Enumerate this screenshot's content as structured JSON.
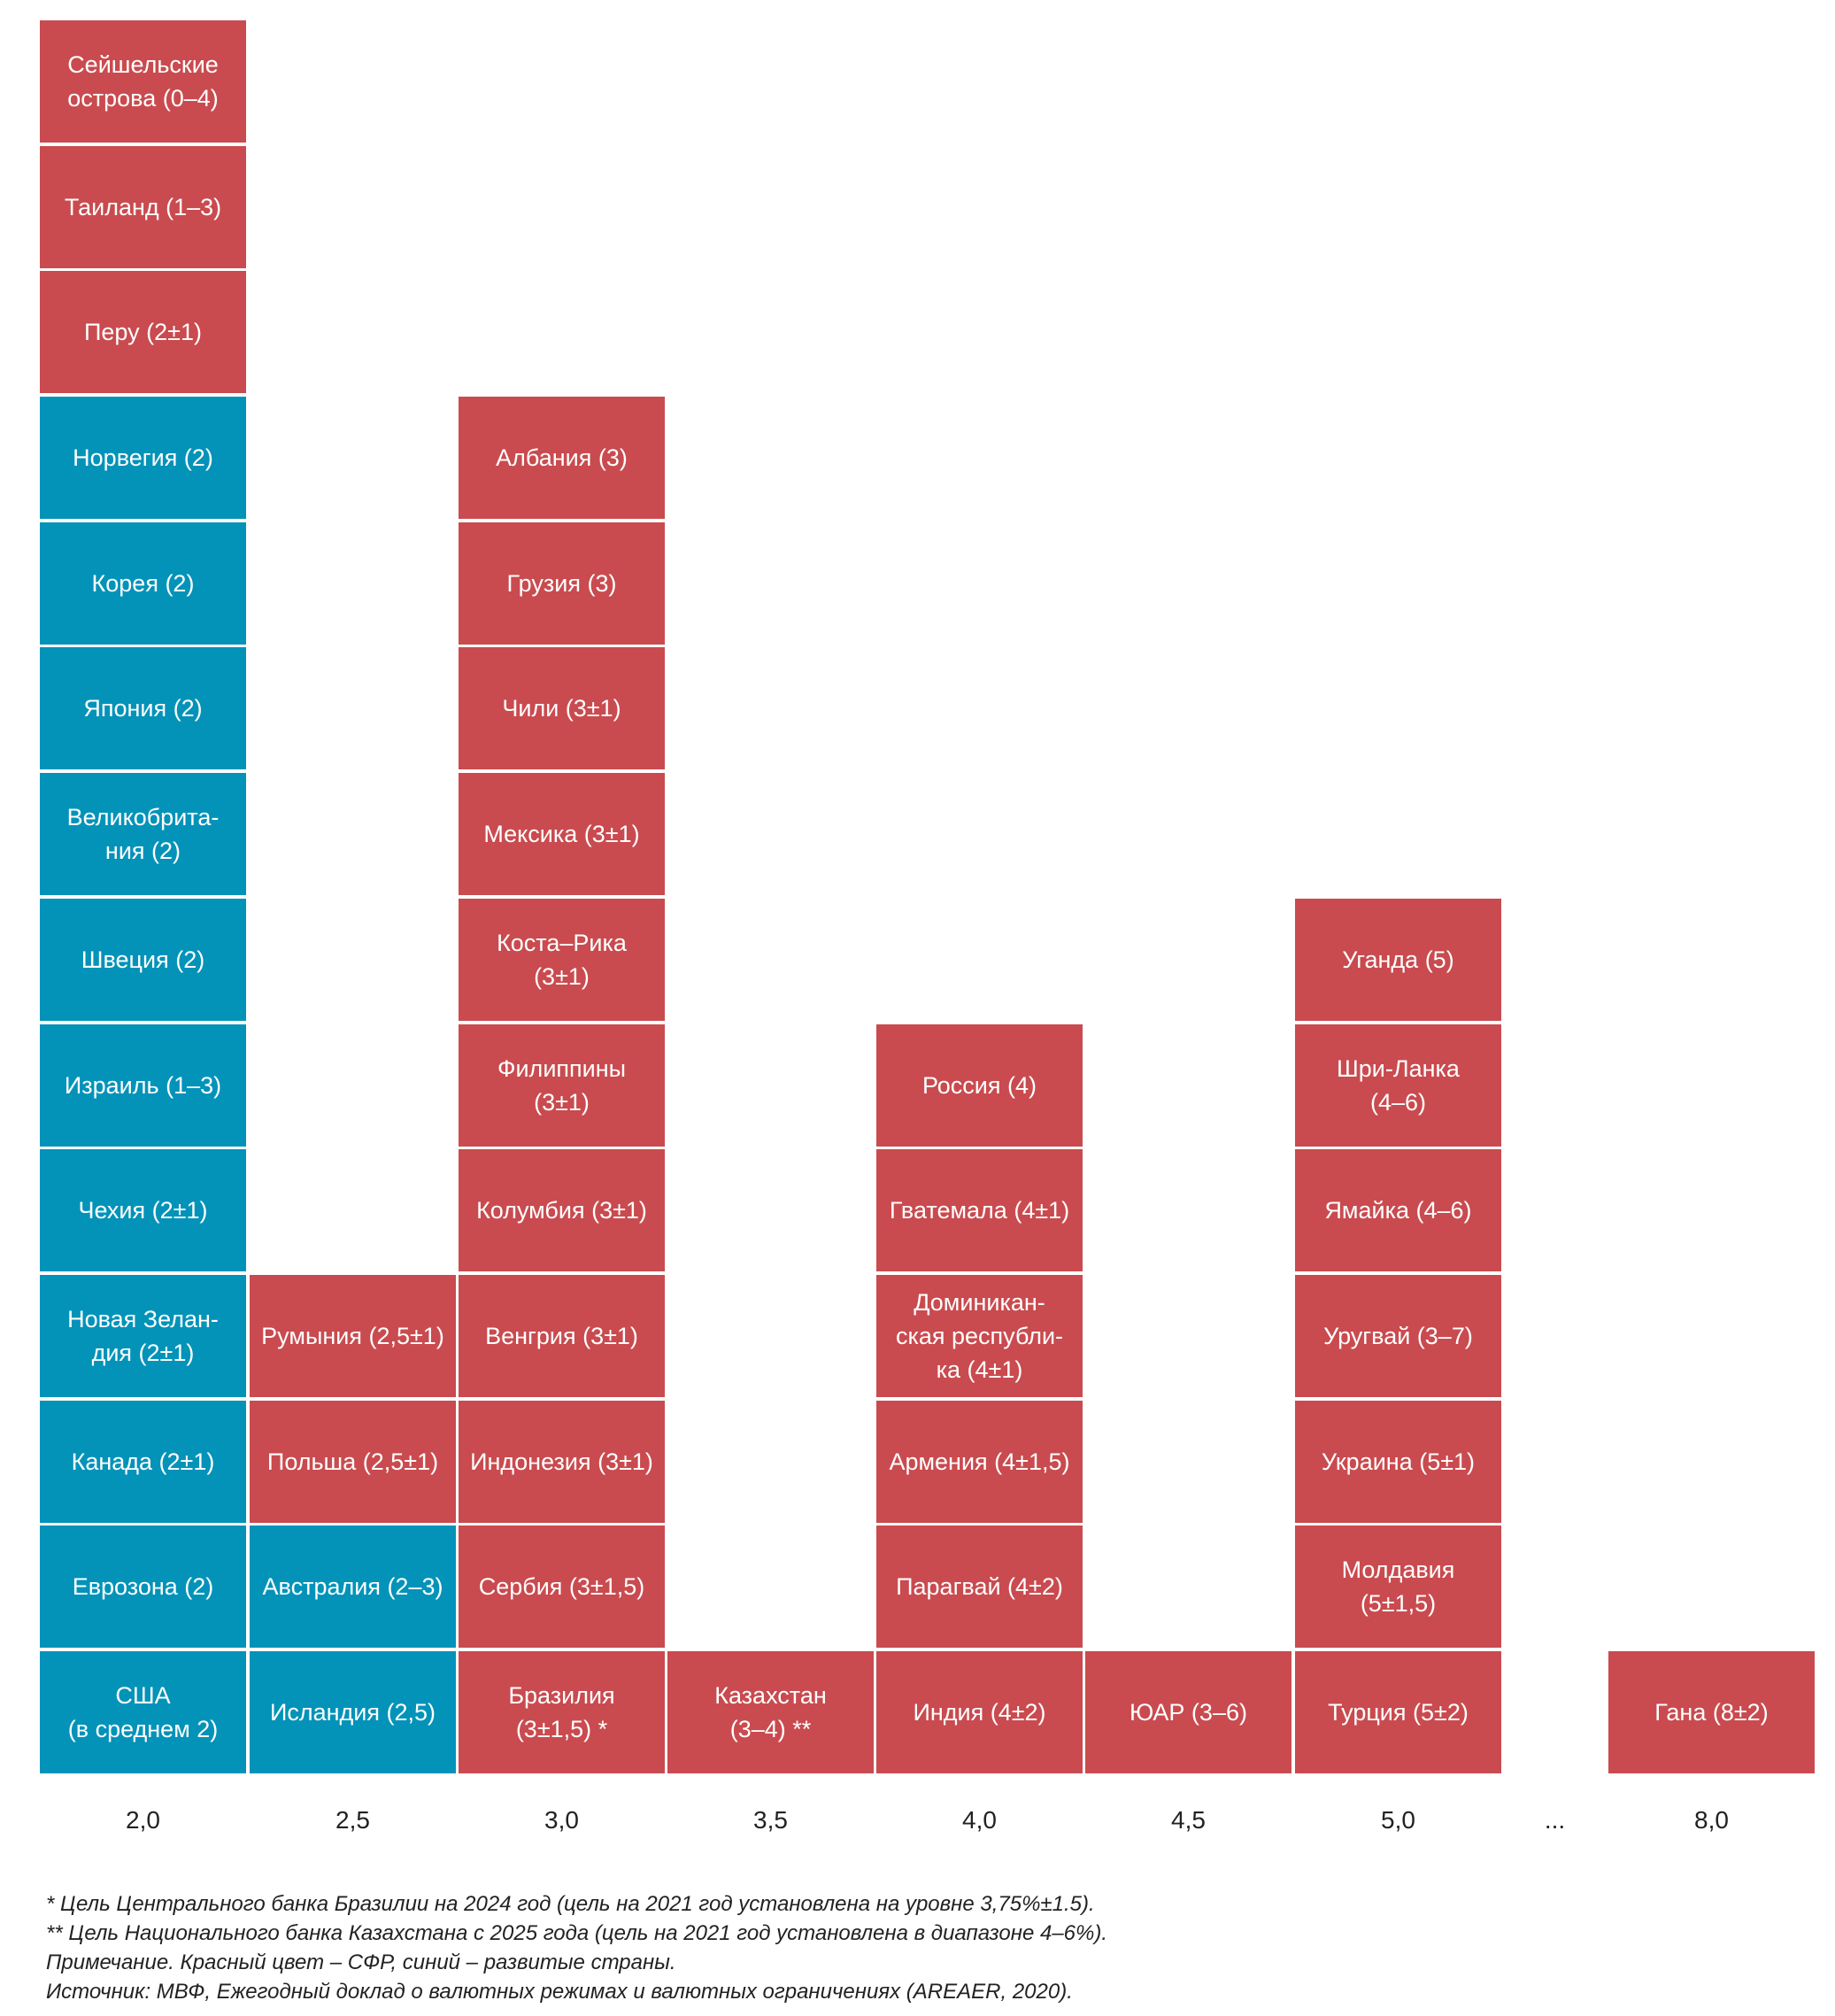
{
  "chart_data": {
    "type": "table",
    "title": "",
    "xlabel": "",
    "ylabel": "",
    "description": "Inflation targets by country, stacked by target level (%)",
    "colors": {
      "emerging": "#C94B4F",
      "advanced": "#0393B9"
    },
    "legend": {
      "emerging": "СФР",
      "advanced": "развитые страны"
    },
    "categories": [
      "2,0",
      "2,5",
      "3,0",
      "3,5",
      "4,0",
      "4,5",
      "5,0",
      "...",
      "8,0"
    ],
    "columns": [
      {
        "target": "2,0",
        "items": [
          {
            "label": "США\n(в среднем 2)",
            "group": "advanced"
          },
          {
            "label": "Еврозона (2)",
            "group": "advanced"
          },
          {
            "label": "Канада (2±1)",
            "group": "advanced"
          },
          {
            "label": "Новая Зелан-\nдия (2±1)",
            "group": "advanced"
          },
          {
            "label": "Чехия (2±1)",
            "group": "advanced"
          },
          {
            "label": "Израиль (1–3)",
            "group": "advanced"
          },
          {
            "label": "Швеция (2)",
            "group": "advanced"
          },
          {
            "label": "Великобрита-\nния (2)",
            "group": "advanced"
          },
          {
            "label": "Япония (2)",
            "group": "advanced"
          },
          {
            "label": "Корея (2)",
            "group": "advanced"
          },
          {
            "label": "Норвегия (2)",
            "group": "advanced"
          },
          {
            "label": "Перу (2±1)",
            "group": "emerging"
          },
          {
            "label": "Таиланд (1–3)",
            "group": "emerging"
          },
          {
            "label": "Сейшельские\nострова (0–4)",
            "group": "emerging"
          }
        ]
      },
      {
        "target": "2,5",
        "items": [
          {
            "label": "Исландия (2,5)",
            "group": "advanced"
          },
          {
            "label": "Австралия (2–3)",
            "group": "advanced"
          },
          {
            "label": "Польша (2,5±1)",
            "group": "emerging"
          },
          {
            "label": "Румыния (2,5±1)",
            "group": "emerging"
          }
        ]
      },
      {
        "target": "3,0",
        "items": [
          {
            "label": "Бразилия\n(3±1,5) *",
            "group": "emerging"
          },
          {
            "label": "Сербия (3±1,5)",
            "group": "emerging"
          },
          {
            "label": "Индонезия (3±1)",
            "group": "emerging"
          },
          {
            "label": "Венгрия (3±1)",
            "group": "emerging"
          },
          {
            "label": "Колумбия (3±1)",
            "group": "emerging"
          },
          {
            "label": "Филиппины\n(3±1)",
            "group": "emerging"
          },
          {
            "label": "Коста–Рика\n(3±1)",
            "group": "emerging"
          },
          {
            "label": "Мексика (3±1)",
            "group": "emerging"
          },
          {
            "label": "Чили (3±1)",
            "group": "emerging"
          },
          {
            "label": "Грузия (3)",
            "group": "emerging"
          },
          {
            "label": "Албания (3)",
            "group": "emerging"
          }
        ]
      },
      {
        "target": "3,5",
        "items": [
          {
            "label": "Казахстан\n(3–4) **",
            "group": "emerging"
          }
        ]
      },
      {
        "target": "4,0",
        "items": [
          {
            "label": "Индия (4±2)",
            "group": "emerging"
          },
          {
            "label": "Парагвай (4±2)",
            "group": "emerging"
          },
          {
            "label": "Армения (4±1,5)",
            "group": "emerging"
          },
          {
            "label": "Доминикан-\nская республи-\nка (4±1)",
            "group": "emerging"
          },
          {
            "label": "Гватемала (4±1)",
            "group": "emerging"
          },
          {
            "label": "Россия (4)",
            "group": "emerging"
          }
        ]
      },
      {
        "target": "4,5",
        "items": [
          {
            "label": "ЮАР (3–6)",
            "group": "emerging"
          }
        ]
      },
      {
        "target": "5,0",
        "items": [
          {
            "label": "Турция (5±2)",
            "group": "emerging"
          },
          {
            "label": "Молдавия\n(5±1,5)",
            "group": "emerging"
          },
          {
            "label": "Украина (5±1)",
            "group": "emerging"
          },
          {
            "label": "Уругвай (3–7)",
            "group": "emerging"
          },
          {
            "label": "Ямайка (4–6)",
            "group": "emerging"
          },
          {
            "label": "Шри-Ланка\n(4–6)",
            "group": "emerging"
          },
          {
            "label": "Уганда (5)",
            "group": "emerging"
          }
        ]
      },
      {
        "target": "...",
        "items": []
      },
      {
        "target": "8,0",
        "items": [
          {
            "label": "Гана (8±2)",
            "group": "emerging"
          }
        ]
      }
    ]
  },
  "footnotes": {
    "note1": " * Цель Центрального банка Бразилии на 2024 год (цель на 2021 год установлена на уровне 3,75%±1.5).",
    "note2": "** Цель Национального банка Казахстана с 2025 года (цель на 2021 год установлена в диапазоне 4–6%).",
    "note3": "Примечание. Красный цвет – СФР, синий – развитые страны.",
    "note4": "Источник: МВФ, Ежегодный доклад о валютных режимах и валютных ограничениях (AREAER, 2020)."
  }
}
